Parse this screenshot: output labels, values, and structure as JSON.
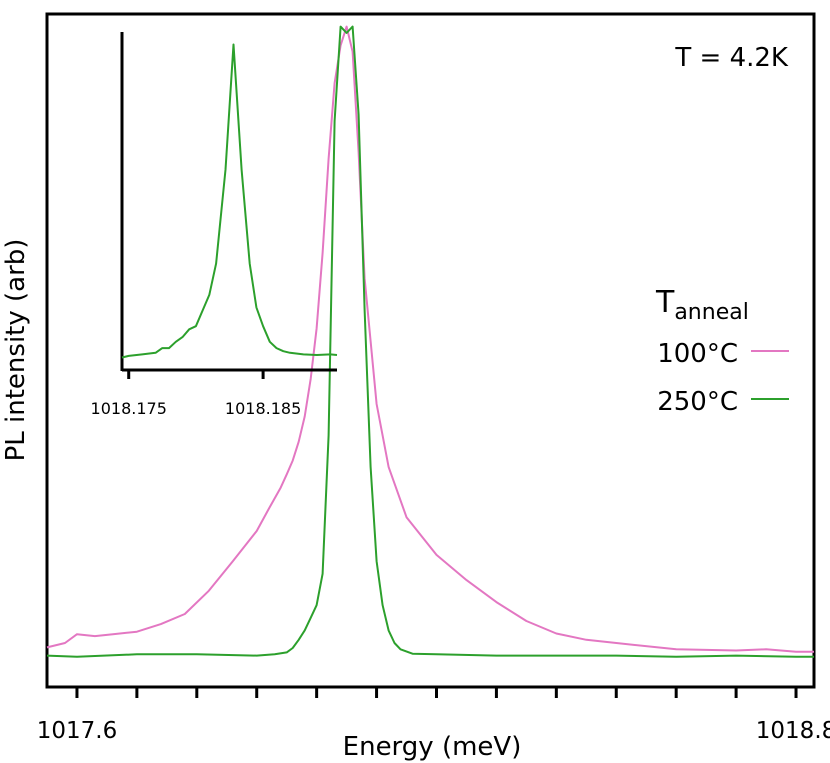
{
  "chart_data": {
    "type": "line",
    "title": "",
    "xlabel": "Energy (meV)",
    "ylabel": "PL intensity (arb)",
    "xlim": [
      1017.55,
      1018.83
    ],
    "ylim": [
      -0.05,
      1.02
    ],
    "x_ticks": [
      1017.6,
      1017.7,
      1017.8,
      1017.9,
      1018.0,
      1018.1,
      1018.2,
      1018.3,
      1018.4,
      1018.5,
      1018.6,
      1018.7,
      1018.8
    ],
    "x_tick_labels": [
      {
        "value": 1017.6,
        "label": "1017.6"
      },
      {
        "value": 1018.8,
        "label": "1018.8"
      }
    ],
    "annotation": "T = 4.2K",
    "legend": {
      "title": "T",
      "title_subscript": "anneal",
      "position": "right"
    },
    "series": [
      {
        "name": "100°C",
        "color": "#e377c2",
        "x": [
          1017.55,
          1017.58,
          1017.6,
          1017.63,
          1017.66,
          1017.7,
          1017.74,
          1017.78,
          1017.82,
          1017.86,
          1017.9,
          1017.92,
          1017.94,
          1017.95,
          1017.96,
          1017.97,
          1017.98,
          1017.99,
          1018.0,
          1018.01,
          1018.02,
          1018.03,
          1018.04,
          1018.05,
          1018.06,
          1018.07,
          1018.08,
          1018.1,
          1018.12,
          1018.15,
          1018.2,
          1018.25,
          1018.3,
          1018.35,
          1018.4,
          1018.45,
          1018.5,
          1018.6,
          1018.7,
          1018.75,
          1018.8,
          1018.83
        ],
        "y": [
          0.013,
          0.02,
          0.034,
          0.031,
          0.034,
          0.038,
          0.05,
          0.066,
          0.103,
          0.15,
          0.198,
          0.233,
          0.267,
          0.288,
          0.31,
          0.34,
          0.38,
          0.44,
          0.52,
          0.64,
          0.79,
          0.91,
          0.97,
          1.0,
          0.96,
          0.8,
          0.6,
          0.4,
          0.3,
          0.22,
          0.16,
          0.12,
          0.085,
          0.055,
          0.035,
          0.025,
          0.02,
          0.01,
          0.008,
          0.01,
          0.006,
          0.006
        ]
      },
      {
        "name": "250°C",
        "color": "#2ca02c",
        "x": [
          1017.55,
          1017.6,
          1017.7,
          1017.8,
          1017.9,
          1017.93,
          1017.95,
          1017.96,
          1017.97,
          1017.98,
          1017.99,
          1018.0,
          1018.01,
          1018.02,
          1018.03,
          1018.04,
          1018.05,
          1018.06,
          1018.07,
          1018.08,
          1018.09,
          1018.1,
          1018.11,
          1018.12,
          1018.13,
          1018.14,
          1018.16,
          1018.2,
          1018.3,
          1018.4,
          1018.5,
          1018.6,
          1018.7,
          1018.8,
          1018.83
        ],
        "y": [
          0.0,
          -0.002,
          0.002,
          0.002,
          0.0,
          0.002,
          0.005,
          0.012,
          0.025,
          0.04,
          0.06,
          0.08,
          0.13,
          0.35,
          0.85,
          1.0,
          0.99,
          1.0,
          0.86,
          0.55,
          0.3,
          0.15,
          0.08,
          0.04,
          0.02,
          0.01,
          0.003,
          0.002,
          0.0,
          0.0,
          0.0,
          -0.002,
          0.0,
          -0.002,
          -0.002
        ]
      }
    ],
    "inset": {
      "type": "line",
      "xlim": [
        1018.1745,
        1018.1905
      ],
      "ylim": [
        -0.04,
        1.04
      ],
      "x_tick_labels": [
        {
          "value": 1018.175,
          "label": "1018.175"
        },
        {
          "value": 1018.185,
          "label": "1018.185"
        }
      ],
      "series": [
        {
          "name": "250°C",
          "color": "#2ca02c",
          "x": [
            1018.1745,
            1018.175,
            1018.176,
            1018.177,
            1018.1775,
            1018.178,
            1018.1785,
            1018.179,
            1018.1795,
            1018.18,
            1018.1805,
            1018.181,
            1018.1815,
            1018.1822,
            1018.1828,
            1018.1834,
            1018.184,
            1018.1845,
            1018.185,
            1018.1855,
            1018.186,
            1018.1865,
            1018.187,
            1018.188,
            1018.189,
            1018.19,
            1018.1905
          ],
          "y": [
            0.0,
            0.005,
            0.01,
            0.015,
            0.03,
            0.03,
            0.05,
            0.065,
            0.09,
            0.1,
            0.15,
            0.2,
            0.3,
            0.6,
            1.0,
            0.6,
            0.3,
            0.16,
            0.1,
            0.05,
            0.03,
            0.02,
            0.015,
            0.01,
            0.008,
            0.01,
            0.008
          ]
        }
      ]
    }
  }
}
